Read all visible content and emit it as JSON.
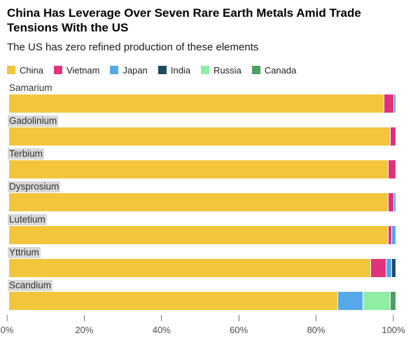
{
  "header": {
    "title": "China Has Leverage Over Seven Rare Earth Metals Amid Trade Tensions With the US",
    "subtitle": "The US has zero refined production of these elements"
  },
  "legend": [
    {
      "label": "China",
      "color": "#F2C53D"
    },
    {
      "label": "Vietnam",
      "color": "#E0337C"
    },
    {
      "label": "Japan",
      "color": "#55A9E8"
    },
    {
      "label": "India",
      "color": "#1D4B66"
    },
    {
      "label": "Russia",
      "color": "#90EDA4"
    },
    {
      "label": "Canada",
      "color": "#4F9E63"
    }
  ],
  "chart_data": {
    "type": "bar",
    "orientation": "horizontal-stacked",
    "title": "China Has Leverage Over Seven Rare Earth Metals Amid Trade Tensions With the US",
    "subtitle": "The US has zero refined production of these elements",
    "unit": "percent of global refined production",
    "categories": [
      "Samarium",
      "Gadolinium",
      "Terbium",
      "Dysprosium",
      "Lutetium",
      "Yttrium",
      "Scandium"
    ],
    "label_highlighted": [
      false,
      true,
      true,
      true,
      true,
      true,
      true
    ],
    "series": [
      {
        "name": "China",
        "color": "#F2C53D",
        "values": [
          97,
          98.5,
          98,
          98,
          98,
          93.5,
          85
        ]
      },
      {
        "name": "Vietnam",
        "color": "#E0337C",
        "values": [
          2.5,
          1.5,
          2,
          1.5,
          1,
          4,
          0
        ]
      },
      {
        "name": "Japan",
        "color": "#55A9E8",
        "values": [
          0.5,
          0,
          0,
          0.5,
          1,
          1.5,
          6.5
        ]
      },
      {
        "name": "India",
        "color": "#1D4B66",
        "values": [
          0,
          0,
          0,
          0,
          0,
          1,
          0
        ]
      },
      {
        "name": "Russia",
        "color": "#90EDA4",
        "values": [
          0,
          0,
          0,
          0,
          0,
          0,
          7
        ]
      },
      {
        "name": "Canada",
        "color": "#4F9E63",
        "values": [
          0,
          0,
          0,
          0,
          0,
          0,
          1.5
        ]
      }
    ],
    "xlim": [
      0,
      100
    ],
    "x_ticks": [
      "0%",
      "20%",
      "40%",
      "60%",
      "80%",
      "100%"
    ],
    "grid": false,
    "legend_position": "top"
  }
}
